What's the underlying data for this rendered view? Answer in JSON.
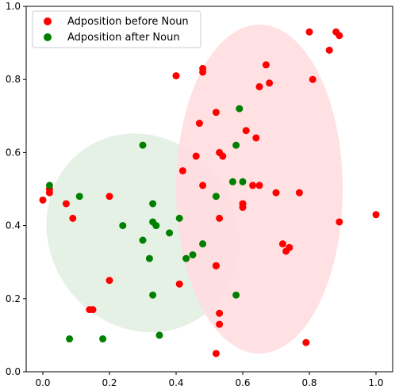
{
  "chart_data": {
    "type": "scatter",
    "xlim": [
      -0.05,
      1.05
    ],
    "ylim": [
      0.0,
      1.0
    ],
    "grid": false,
    "legend_position": "top-left",
    "xticks": [
      "0.0",
      "0.2",
      "0.4",
      "0.6",
      "0.8",
      "1.0"
    ],
    "yticks": [
      "0.0",
      "0.2",
      "0.4",
      "0.6",
      "0.8",
      "1.0"
    ],
    "ellipses": [
      {
        "series": "Adposition after Noun",
        "center": [
          0.3,
          0.38
        ],
        "rx": 0.28,
        "ry": 0.28,
        "rotation_deg": -35,
        "fill": "#e3f0e3"
      },
      {
        "series": "Adposition before Noun",
        "center": [
          0.65,
          0.5
        ],
        "rx": 0.25,
        "ry": 0.45,
        "rotation_deg": 0,
        "fill": "#ffdde0"
      }
    ],
    "series": [
      {
        "name": "Adposition before Noun",
        "color": "#ff0000",
        "points": [
          [
            0.0,
            0.47
          ],
          [
            0.02,
            0.49
          ],
          [
            0.02,
            0.5
          ],
          [
            0.07,
            0.46
          ],
          [
            0.09,
            0.42
          ],
          [
            0.14,
            0.17
          ],
          [
            0.15,
            0.17
          ],
          [
            0.2,
            0.48
          ],
          [
            0.2,
            0.25
          ],
          [
            0.4,
            0.81
          ],
          [
            0.41,
            0.24
          ],
          [
            0.42,
            0.55
          ],
          [
            0.46,
            0.59
          ],
          [
            0.47,
            0.68
          ],
          [
            0.48,
            0.83
          ],
          [
            0.48,
            0.82
          ],
          [
            0.48,
            0.51
          ],
          [
            0.52,
            0.71
          ],
          [
            0.52,
            0.29
          ],
          [
            0.52,
            0.29
          ],
          [
            0.52,
            0.05
          ],
          [
            0.53,
            0.16
          ],
          [
            0.53,
            0.13
          ],
          [
            0.53,
            0.6
          ],
          [
            0.53,
            0.42
          ],
          [
            0.54,
            0.59
          ],
          [
            0.6,
            0.45
          ],
          [
            0.6,
            0.46
          ],
          [
            0.61,
            0.66
          ],
          [
            0.63,
            0.51
          ],
          [
            0.64,
            0.64
          ],
          [
            0.65,
            0.51
          ],
          [
            0.65,
            0.78
          ],
          [
            0.67,
            0.84
          ],
          [
            0.68,
            0.79
          ],
          [
            0.7,
            0.49
          ],
          [
            0.72,
            0.35
          ],
          [
            0.73,
            0.33
          ],
          [
            0.74,
            0.34
          ],
          [
            0.77,
            0.49
          ],
          [
            0.79,
            0.08
          ],
          [
            0.8,
            0.93
          ],
          [
            0.81,
            0.8
          ],
          [
            0.86,
            0.88
          ],
          [
            0.88,
            0.93
          ],
          [
            0.89,
            0.92
          ],
          [
            0.89,
            0.41
          ],
          [
            1.0,
            0.43
          ]
        ]
      },
      {
        "name": "Adposition after Noun",
        "color": "#008000",
        "points": [
          [
            0.02,
            0.51
          ],
          [
            0.08,
            0.09
          ],
          [
            0.11,
            0.48
          ],
          [
            0.18,
            0.09
          ],
          [
            0.24,
            0.4
          ],
          [
            0.3,
            0.36
          ],
          [
            0.3,
            0.62
          ],
          [
            0.32,
            0.31
          ],
          [
            0.33,
            0.21
          ],
          [
            0.33,
            0.46
          ],
          [
            0.33,
            0.41
          ],
          [
            0.34,
            0.4
          ],
          [
            0.35,
            0.1
          ],
          [
            0.38,
            0.38
          ],
          [
            0.41,
            0.42
          ],
          [
            0.43,
            0.31
          ],
          [
            0.45,
            0.32
          ],
          [
            0.48,
            0.35
          ],
          [
            0.52,
            0.48
          ],
          [
            0.57,
            0.52
          ],
          [
            0.58,
            0.21
          ],
          [
            0.58,
            0.62
          ],
          [
            0.59,
            0.72
          ],
          [
            0.6,
            0.52
          ]
        ]
      }
    ]
  }
}
